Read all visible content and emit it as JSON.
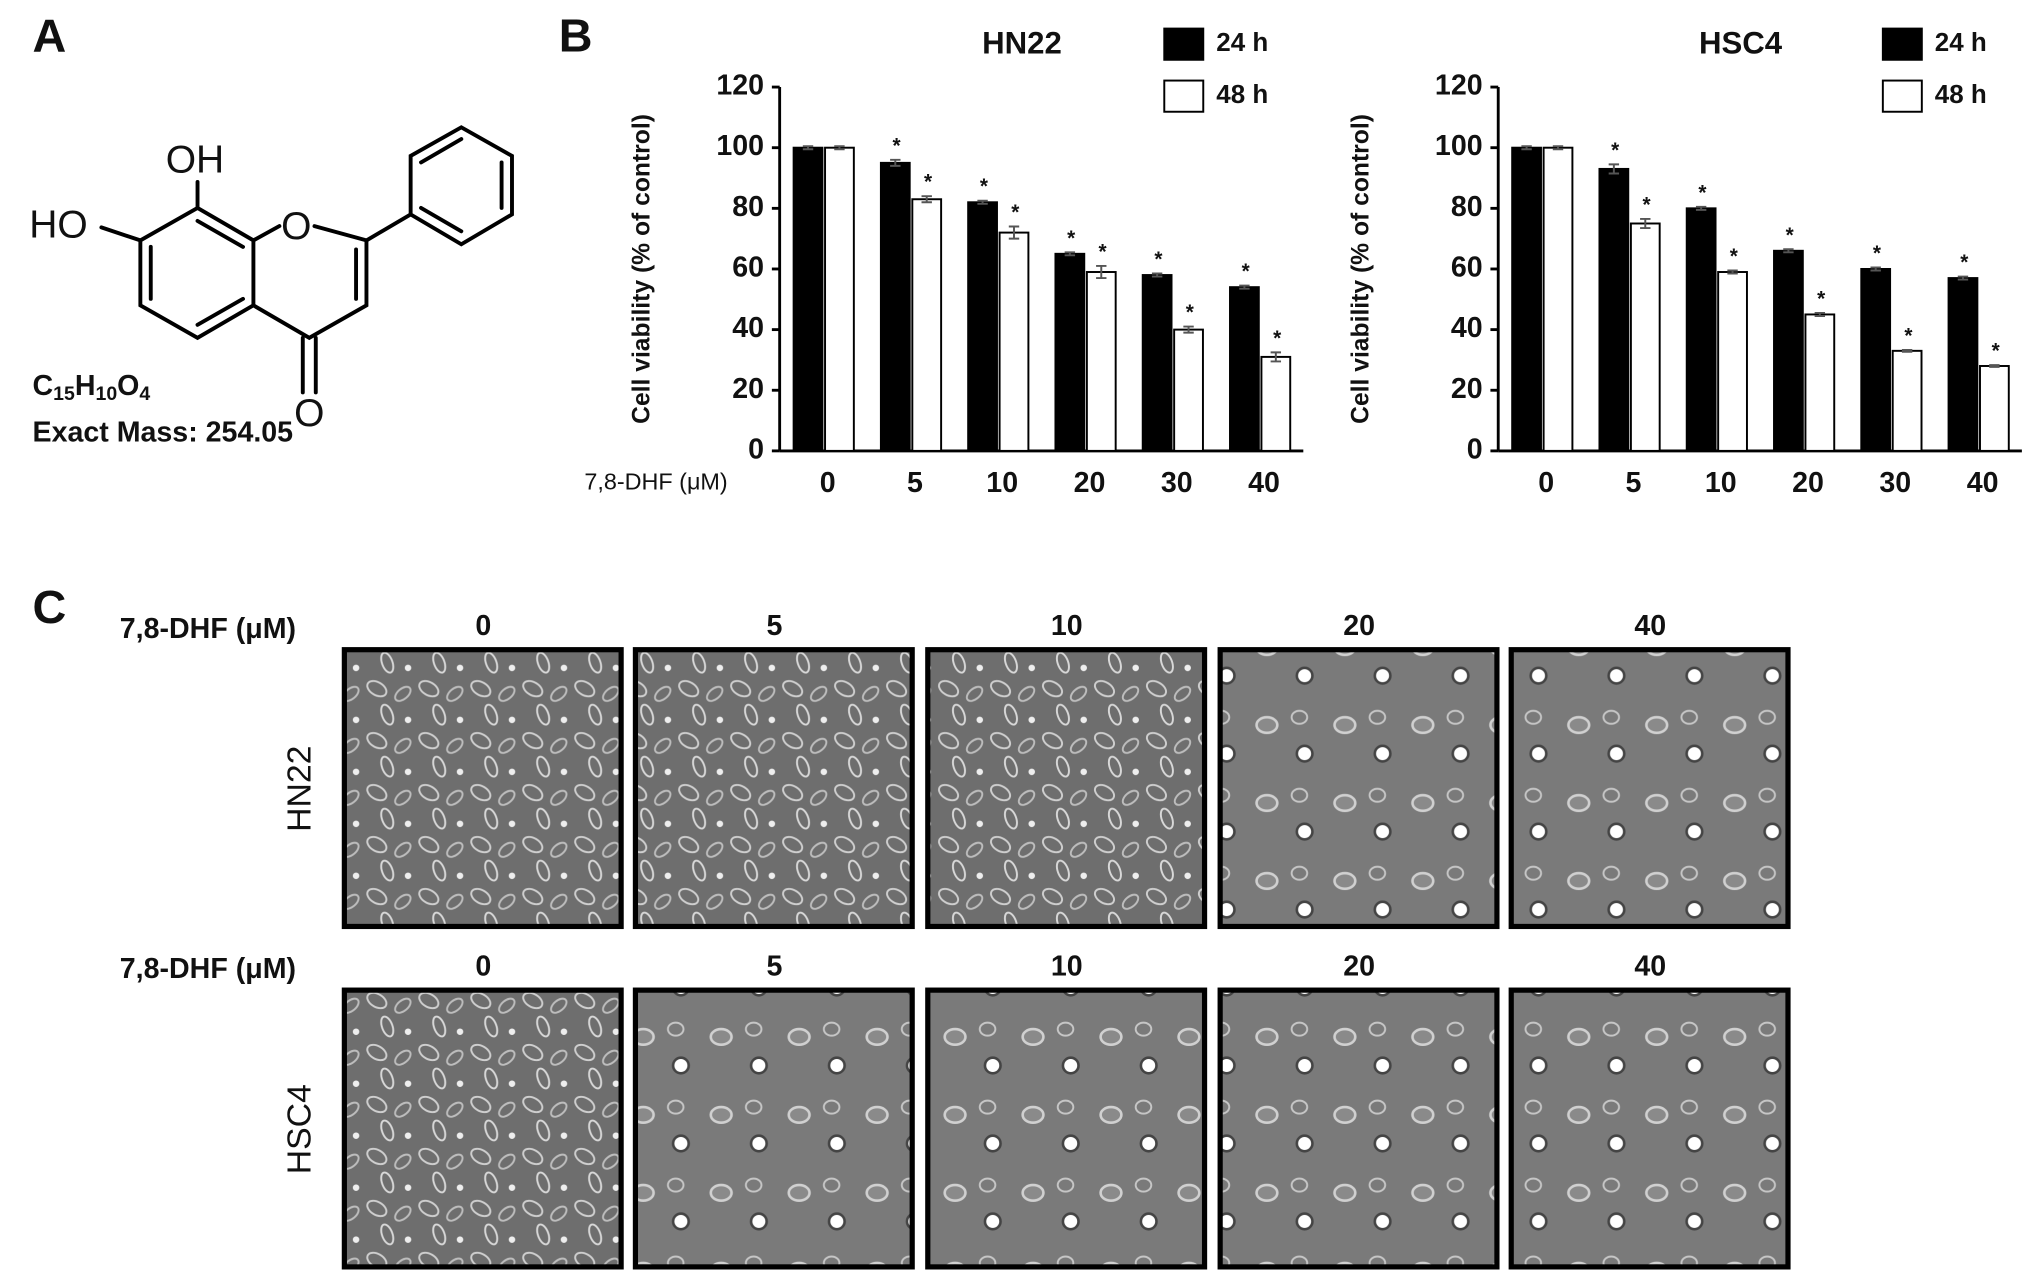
{
  "panel_labels": [
    "A",
    "B",
    "C"
  ],
  "structure": {
    "atoms": [
      "OH",
      "HO",
      "O",
      "O"
    ],
    "formula": [
      "C",
      "15",
      "H",
      "10",
      "O",
      "4"
    ],
    "exact_mass": "Exact Mass: 254.05"
  },
  "chart_data": [
    {
      "type": "bar",
      "title": "HN22",
      "xlabel": "7,8-DHF  (μM)",
      "ylabel": "Cell viability (% of control)",
      "categories": [
        "0",
        "5",
        "10",
        "20",
        "30",
        "40"
      ],
      "ylim": [
        0,
        120
      ],
      "yticks": [
        0,
        20,
        40,
        60,
        80,
        100,
        120
      ],
      "grid": false,
      "legend": "top-right",
      "significance_label": "*",
      "series": [
        {
          "name": "24 h",
          "color": "#000000",
          "values": [
            100,
            95,
            82,
            65,
            58,
            54
          ],
          "errors": [
            0.5,
            1,
            0.5,
            0.5,
            0.5,
            0.5
          ],
          "significant": [
            false,
            true,
            true,
            true,
            true,
            true
          ]
        },
        {
          "name": "48 h",
          "color": "#ffffff",
          "values": [
            100,
            83,
            72,
            59,
            40,
            31
          ],
          "errors": [
            0.5,
            1,
            2,
            2,
            1,
            1.5
          ],
          "significant": [
            false,
            true,
            true,
            true,
            true,
            true
          ]
        }
      ]
    },
    {
      "type": "bar",
      "title": "HSC4",
      "ylabel": "Cell viability (% of control)",
      "categories": [
        "0",
        "5",
        "10",
        "20",
        "30",
        "40"
      ],
      "ylim": [
        0,
        120
      ],
      "yticks": [
        0,
        20,
        40,
        60,
        80,
        100,
        120
      ],
      "grid": false,
      "legend": "top-right",
      "significance_label": "*",
      "series": [
        {
          "name": "24 h",
          "color": "#000000",
          "values": [
            100,
            93,
            80,
            66,
            60,
            57
          ],
          "errors": [
            0.5,
            1.5,
            0.5,
            0.5,
            0.5,
            0.5
          ],
          "significant": [
            false,
            true,
            true,
            true,
            true,
            true
          ]
        },
        {
          "name": "48 h",
          "color": "#ffffff",
          "values": [
            100,
            75,
            59,
            45,
            33,
            28
          ],
          "errors": [
            0.5,
            1.5,
            0.5,
            0.5,
            0.3,
            0.3
          ],
          "significant": [
            false,
            true,
            true,
            true,
            true,
            true
          ]
        }
      ]
    }
  ],
  "micrographs": {
    "rows": [
      {
        "dose_label": "7,8-DHF (μM)",
        "doses": [
          "0",
          "5",
          "10",
          "20",
          "40"
        ],
        "cell_line": "HN22"
      },
      {
        "dose_label": "7,8-DHF (μM)",
        "doses": [
          "0",
          "5",
          "10",
          "20",
          "40"
        ],
        "cell_line": "HSC4"
      }
    ]
  }
}
